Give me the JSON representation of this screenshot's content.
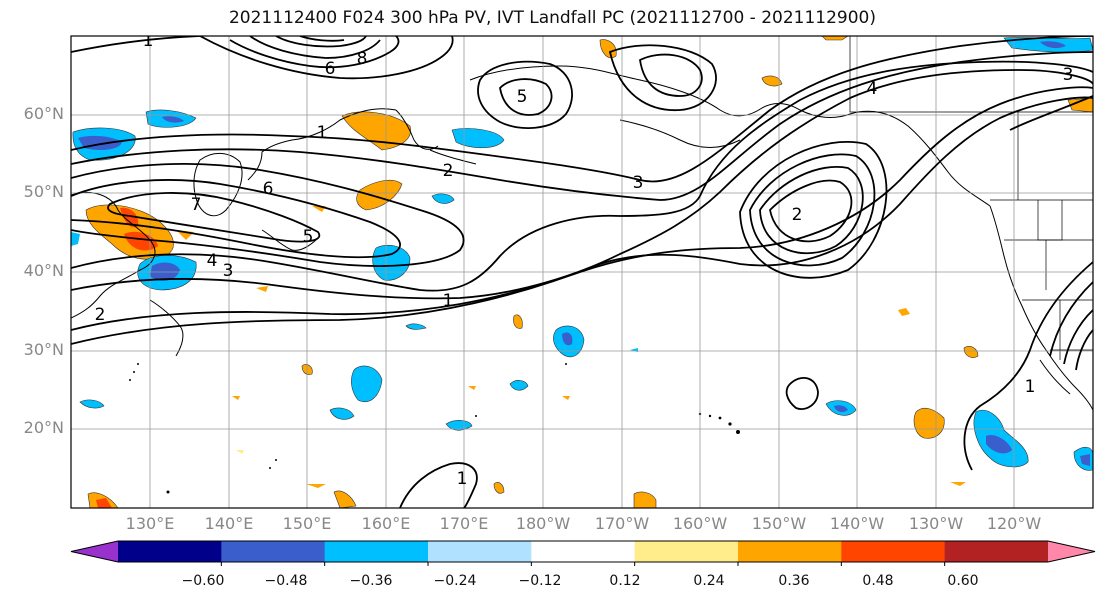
{
  "title": "2021112400 F024 300 hPa PV, IVT Landfall PC (2021112700 - 2021112900)",
  "latitude_labels": [
    "60°N",
    "50°N",
    "40°N",
    "30°N",
    "20°N"
  ],
  "longitude_labels": [
    "130°E",
    "140°E",
    "150°E",
    "160°E",
    "170°E",
    "180°W",
    "170°W",
    "160°W",
    "150°W",
    "140°W",
    "130°W",
    "120°W"
  ],
  "colorbar": {
    "tick_labels": [
      "−0.60",
      "−0.48",
      "−0.36",
      "−0.24",
      "−0.12",
      "0.12",
      "0.24",
      "0.36",
      "0.48",
      "0.60"
    ],
    "colors": [
      "#9932cc",
      "#00008b",
      "#3a5fcd",
      "#00bfff",
      "#b0e2ff",
      "#ffffff",
      "#ffec8b",
      "#ffa500",
      "#ff4500",
      "#b22222",
      "#ff88aa"
    ]
  },
  "contour_labels": [
    "1",
    "1",
    "1",
    "1",
    "1",
    "2",
    "2",
    "2",
    "3",
    "3",
    "3",
    "4",
    "4",
    "5",
    "5",
    "6",
    "6",
    "7",
    "8"
  ]
}
